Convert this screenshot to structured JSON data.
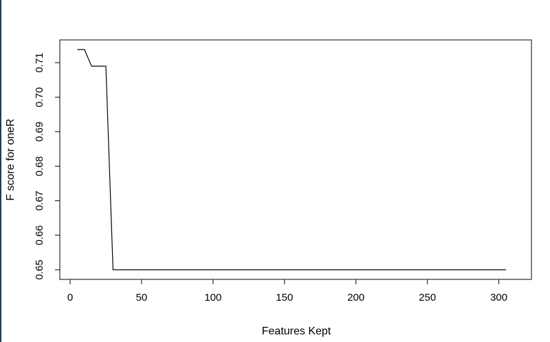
{
  "chart_data": {
    "type": "line",
    "title": "",
    "xlabel": "Features Kept",
    "ylabel": "F score for oneR",
    "xlim": [
      0,
      305
    ],
    "ylim": [
      0.65,
      0.714
    ],
    "x_ticks": [
      0,
      50,
      100,
      150,
      200,
      250,
      300
    ],
    "x_tick_labels": [
      "0",
      "50",
      "100",
      "150",
      "200",
      "250",
      "300"
    ],
    "y_ticks": [
      0.65,
      0.66,
      0.67,
      0.68,
      0.69,
      0.7,
      0.71
    ],
    "y_tick_labels": [
      "0.65",
      "0.66",
      "0.67",
      "0.68",
      "0.69",
      "0.70",
      "0.71"
    ],
    "grid": false,
    "series": [
      {
        "color": "#000000",
        "x": [
          5,
          10,
          15,
          20,
          25,
          30,
          305
        ],
        "y": [
          0.7138,
          0.7138,
          0.709,
          0.709,
          0.709,
          0.65,
          0.65
        ]
      }
    ]
  },
  "colors": {
    "line": "#000000",
    "frame": "#000000",
    "edge_accent": "#1f3a5f"
  }
}
